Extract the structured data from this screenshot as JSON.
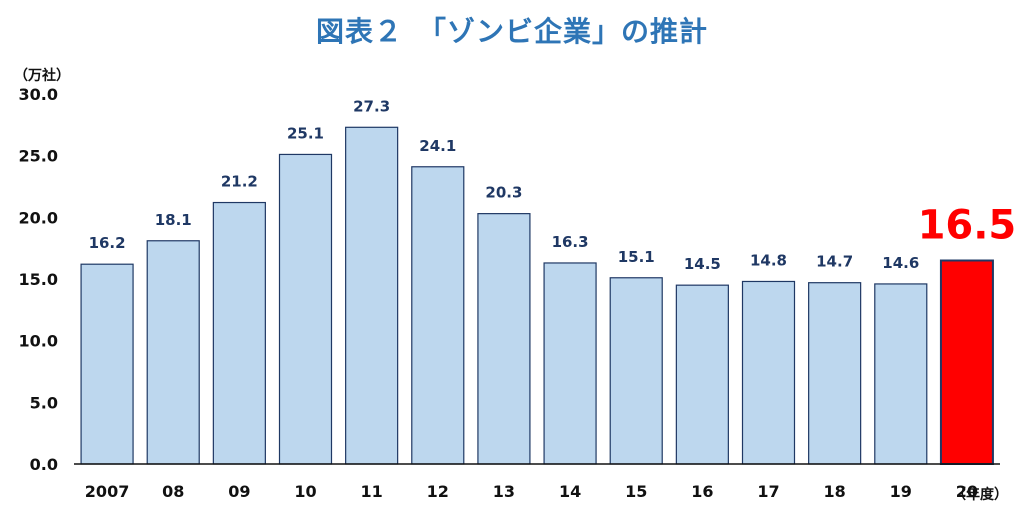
{
  "title": "図表２　「ゾンビ企業」の推計",
  "colors": {
    "title": "#2E75B6",
    "bar_fill": "#BDD7EE",
    "bar_stroke": "#1F3864",
    "highlight_fill": "#FF0000",
    "highlight_label": "#FF0000",
    "data_label": "#1F3864",
    "axis": "#111111"
  },
  "chart_data": {
    "type": "bar",
    "title": "図表２　「ゾンビ企業」の推計",
    "y_unit_label": "（万社）",
    "x_unit_label": "（年度）",
    "ylim": [
      0,
      30
    ],
    "y_ticks": [
      "0.0",
      "5.0",
      "10.0",
      "15.0",
      "20.0",
      "25.0",
      "30.0"
    ],
    "categories": [
      "2007",
      "08",
      "09",
      "10",
      "11",
      "12",
      "13",
      "14",
      "15",
      "16",
      "17",
      "18",
      "19",
      "20"
    ],
    "values": [
      16.2,
      18.1,
      21.2,
      25.1,
      27.3,
      24.1,
      20.3,
      16.3,
      15.1,
      14.5,
      14.8,
      14.7,
      14.6,
      16.5
    ],
    "value_labels": [
      "16.2",
      "18.1",
      "21.2",
      "25.1",
      "27.3",
      "24.1",
      "20.3",
      "16.3",
      "15.1",
      "14.5",
      "14.8",
      "14.7",
      "14.6",
      "16.5"
    ],
    "highlight_index": 13,
    "grid": false,
    "legend": "none"
  }
}
